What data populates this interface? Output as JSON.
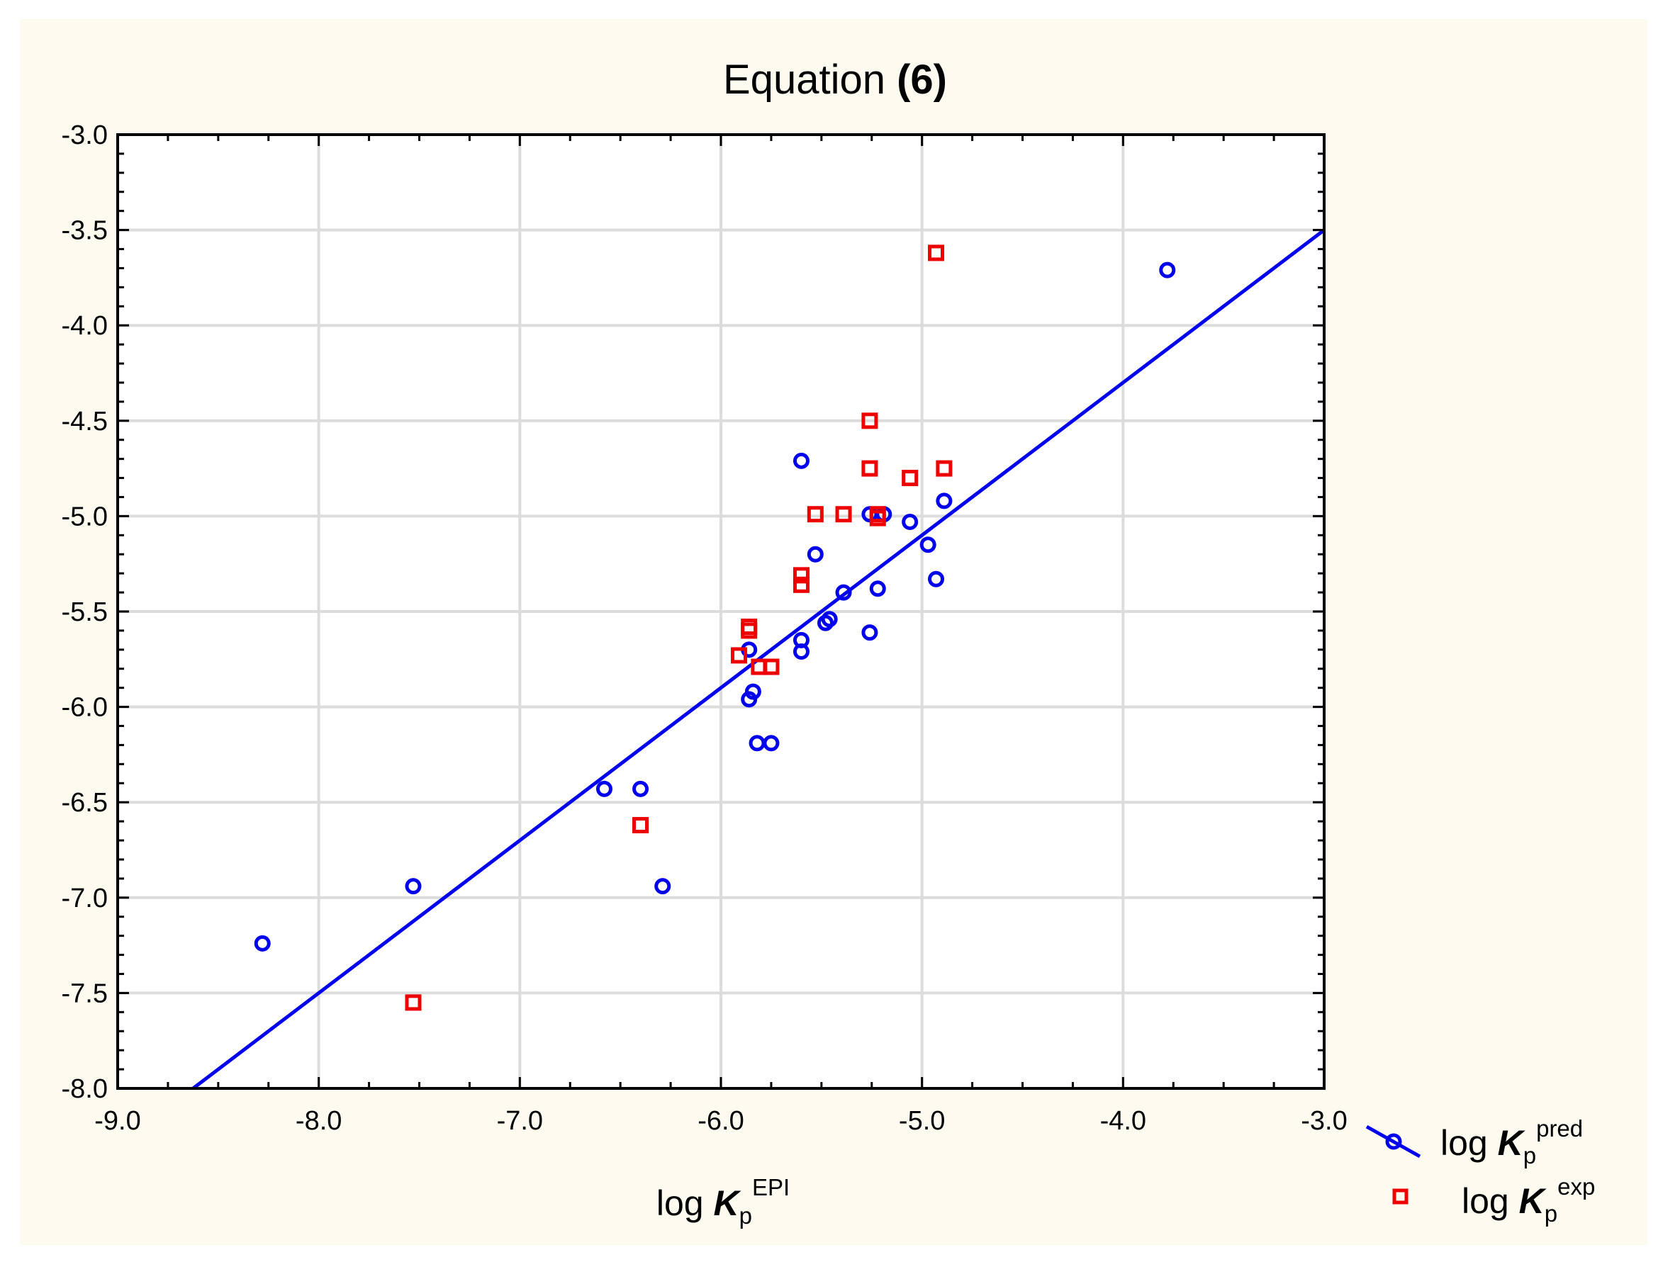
{
  "chart_data": {
    "type": "scatter",
    "title": {
      "text": "Equation ",
      "bold": "(6)"
    },
    "xlabel": {
      "base": "log ",
      "var": "K",
      "sub": "p",
      "sup": "EPI"
    },
    "ylabel": "",
    "xlim": [
      -9.0,
      -3.0
    ],
    "ylim": [
      -8.0,
      -3.0
    ],
    "x_ticks": [
      "-9.0",
      "-8.0",
      "-7.0",
      "-6.0",
      "-5.0",
      "-4.0",
      "-3.0"
    ],
    "y_ticks": [
      "-3.0",
      "-3.5",
      "-4.0",
      "-4.5",
      "-5.0",
      "-5.5",
      "-6.0",
      "-6.5",
      "-7.0",
      "-7.5",
      "-8.0"
    ],
    "grid": true,
    "legend_position": "bottom-right outside",
    "colors": {
      "pred": "#0000ee",
      "exp": "#ee0000",
      "grid": "#dcdcdc",
      "background": "#fdfaef"
    },
    "fit_line": {
      "slope": 0.8,
      "intercept": -1.1
    },
    "series": [
      {
        "name": "pred",
        "label": {
          "base": "log ",
          "var": "K",
          "sub": "p",
          "sup": "pred"
        },
        "marker": "circle",
        "points": [
          [
            -8.28,
            -7.24
          ],
          [
            -7.53,
            -6.94
          ],
          [
            -6.58,
            -6.43
          ],
          [
            -6.4,
            -6.43
          ],
          [
            -6.29,
            -6.94
          ],
          [
            -5.86,
            -5.7
          ],
          [
            -5.86,
            -5.96
          ],
          [
            -5.84,
            -5.92
          ],
          [
            -5.82,
            -6.19
          ],
          [
            -5.75,
            -6.19
          ],
          [
            -5.6,
            -5.65
          ],
          [
            -5.6,
            -5.71
          ],
          [
            -5.6,
            -4.71
          ],
          [
            -5.53,
            -5.2
          ],
          [
            -5.48,
            -5.56
          ],
          [
            -5.46,
            -5.54
          ],
          [
            -5.39,
            -5.4
          ],
          [
            -5.26,
            -5.61
          ],
          [
            -5.26,
            -4.99
          ],
          [
            -5.22,
            -5.38
          ],
          [
            -5.19,
            -4.99
          ],
          [
            -5.06,
            -5.03
          ],
          [
            -4.97,
            -5.15
          ],
          [
            -4.93,
            -5.33
          ],
          [
            -4.89,
            -4.92
          ],
          [
            -3.78,
            -3.71
          ]
        ]
      },
      {
        "name": "exp",
        "label": {
          "base": "log ",
          "var": "K",
          "sub": "p",
          "sup": "exp"
        },
        "marker": "square",
        "points": [
          [
            -7.53,
            -7.55
          ],
          [
            -6.4,
            -6.62
          ],
          [
            -5.91,
            -5.73
          ],
          [
            -5.86,
            -5.58
          ],
          [
            -5.86,
            -5.6
          ],
          [
            -5.81,
            -5.79
          ],
          [
            -5.75,
            -5.79
          ],
          [
            -5.6,
            -5.31
          ],
          [
            -5.6,
            -5.36
          ],
          [
            -5.53,
            -4.99
          ],
          [
            -5.39,
            -4.99
          ],
          [
            -5.26,
            -4.5
          ],
          [
            -5.26,
            -4.75
          ],
          [
            -5.22,
            -4.99
          ],
          [
            -5.22,
            -5.01
          ],
          [
            -5.06,
            -4.8
          ],
          [
            -4.93,
            -3.62
          ],
          [
            -4.89,
            -4.75
          ]
        ]
      }
    ]
  }
}
